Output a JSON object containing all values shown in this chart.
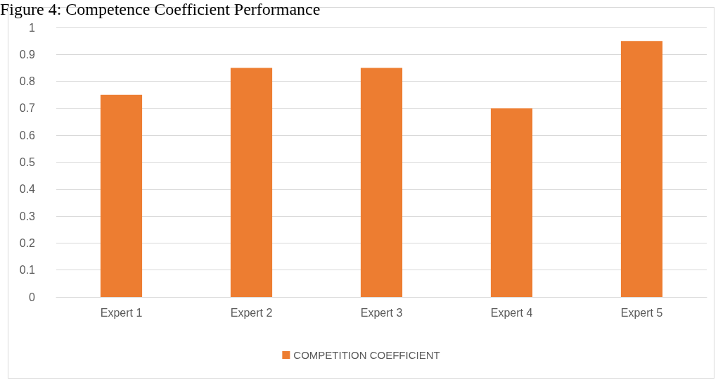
{
  "chart_data": {
    "type": "bar",
    "title": "Figure 4: Competence Coefficient Performance",
    "categories": [
      "Expert 1",
      "Expert 2",
      "Expert 3",
      "Expert 4",
      "Expert 5"
    ],
    "series": [
      {
        "name": "COMPETITION COEFFICIENT",
        "color": "#ed7d31",
        "values": [
          0.75,
          0.85,
          0.85,
          0.7,
          0.95
        ]
      }
    ],
    "ylim": [
      0,
      1
    ],
    "yticks": [
      0,
      0.1,
      0.2,
      0.3,
      0.4,
      0.5,
      0.6,
      0.7,
      0.8,
      0.9,
      1
    ],
    "grid": "y",
    "legend": "bottom"
  }
}
